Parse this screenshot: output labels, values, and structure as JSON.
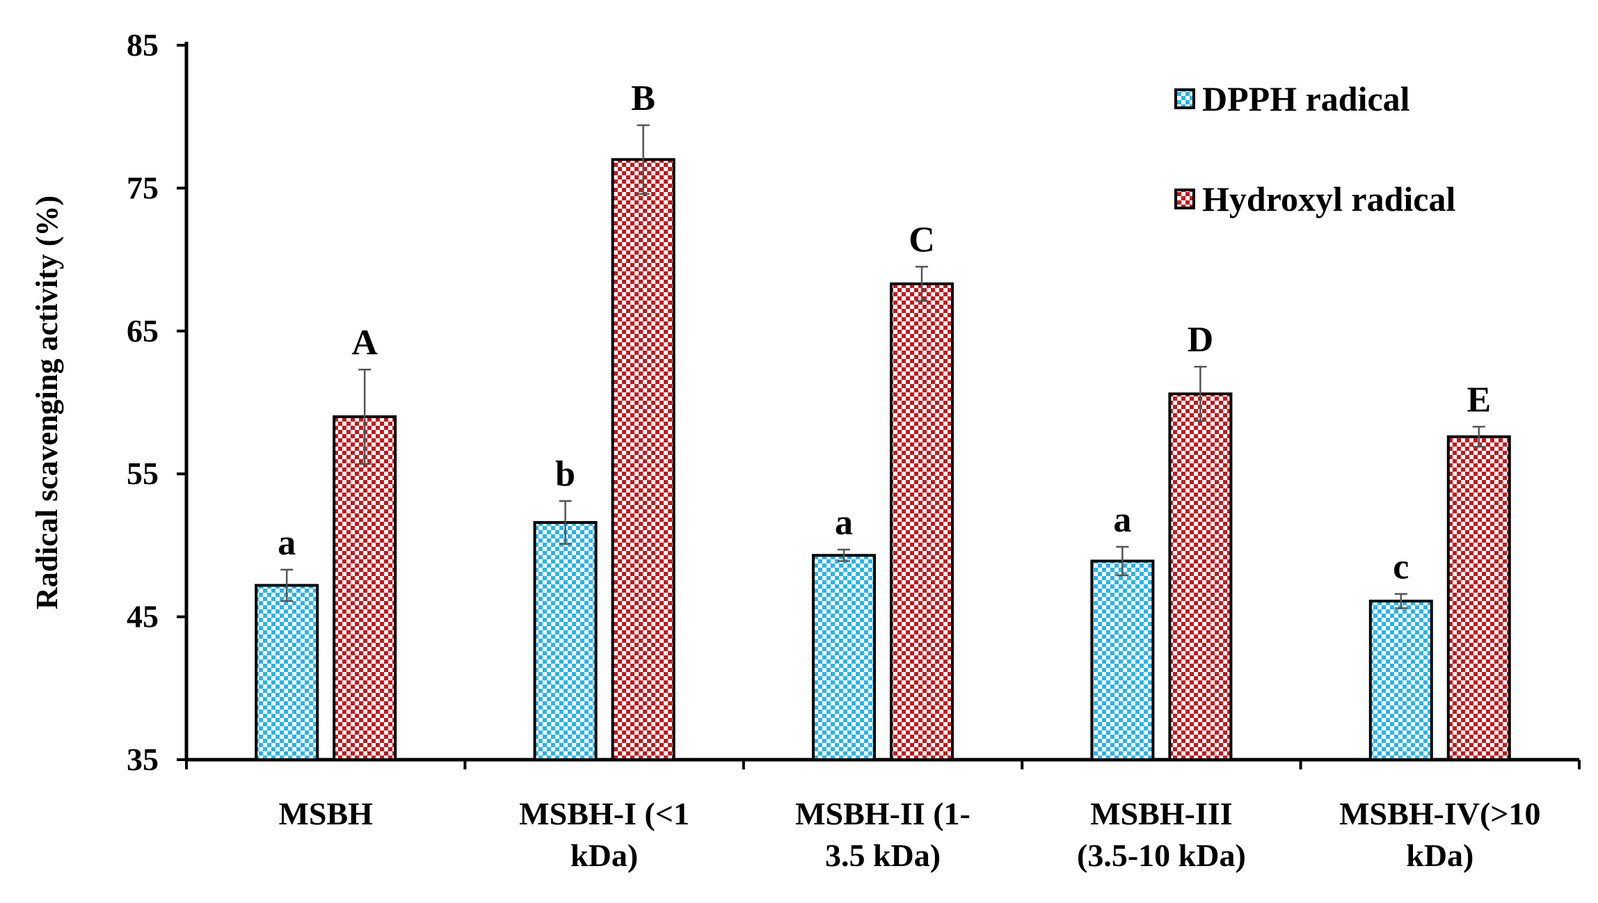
{
  "chart_data": {
    "type": "bar",
    "ylabel": "Radical scavenging activity (%)",
    "xlabel": "",
    "ylim": [
      35,
      85
    ],
    "yticks": [
      35,
      45,
      55,
      65,
      75,
      85
    ],
    "categories": [
      [
        "MSBH"
      ],
      [
        "MSBH-I (<1",
        "kDa)"
      ],
      [
        "MSBH-II (1-",
        "3.5 kDa)"
      ],
      [
        "MSBH-III",
        "(3.5-10 kDa)"
      ],
      [
        "MSBH-IV(>10",
        "kDa)"
      ]
    ],
    "series": [
      {
        "name": "DPPH radical",
        "color": "#2ab3e6",
        "values": [
          47.2,
          51.6,
          49.3,
          48.9,
          46.1
        ],
        "errors": [
          1.1,
          1.5,
          0.4,
          1.0,
          0.5
        ],
        "letters": [
          "a",
          "b",
          "a",
          "a",
          "c"
        ]
      },
      {
        "name": "Hydroxyl radical",
        "color": "#c0191e",
        "values": [
          59.0,
          77.0,
          68.3,
          60.6,
          57.6
        ],
        "errors": [
          3.3,
          2.4,
          1.2,
          1.9,
          0.7
        ],
        "letters": [
          "A",
          "B",
          "C",
          "D",
          "E"
        ]
      }
    ],
    "legend_position": "top-right",
    "grid": false
  }
}
